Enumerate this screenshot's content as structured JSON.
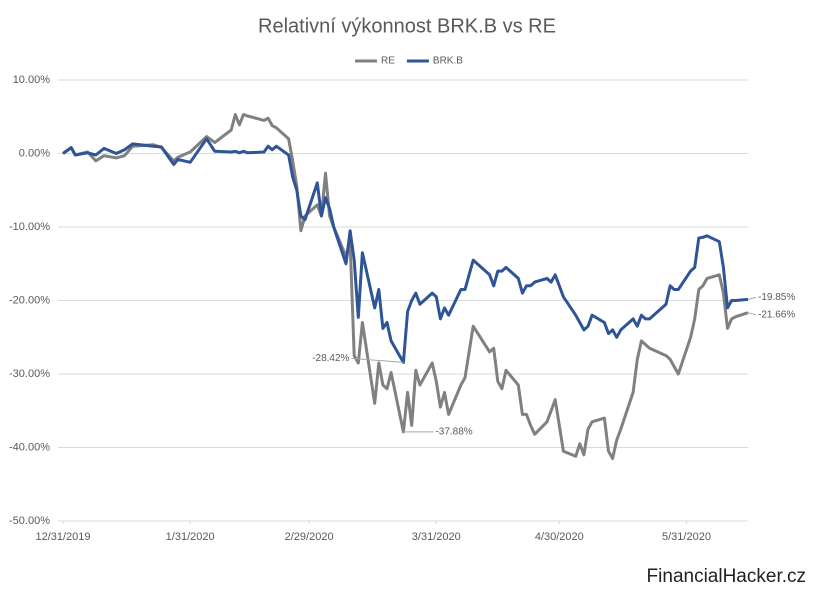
{
  "chart_data": {
    "type": "line",
    "title": "Relativní výkonnost BRK.B vs RE",
    "watermark": "FinancialHacker.cz",
    "x": [
      "2019-12-31",
      "2020-01-02",
      "2020-01-03",
      "2020-01-06",
      "2020-01-08",
      "2020-01-10",
      "2020-01-13",
      "2020-01-15",
      "2020-01-17",
      "2020-01-22",
      "2020-01-24",
      "2020-01-27",
      "2020-01-28",
      "2020-01-31",
      "2020-02-04",
      "2020-02-06",
      "2020-02-10",
      "2020-02-11",
      "2020-02-12",
      "2020-02-13",
      "2020-02-14",
      "2020-02-18",
      "2020-02-19",
      "2020-02-20",
      "2020-02-21",
      "2020-02-24",
      "2020-02-25",
      "2020-02-26",
      "2020-02-27",
      "2020-02-28",
      "2020-03-02",
      "2020-03-03",
      "2020-03-04",
      "2020-03-05",
      "2020-03-06",
      "2020-03-09",
      "2020-03-10",
      "2020-03-11",
      "2020-03-12",
      "2020-03-13",
      "2020-03-16",
      "2020-03-17",
      "2020-03-18",
      "2020-03-19",
      "2020-03-20",
      "2020-03-23",
      "2020-03-24",
      "2020-03-25",
      "2020-03-26",
      "2020-03-27",
      "2020-03-30",
      "2020-03-31",
      "2020-04-01",
      "2020-04-02",
      "2020-04-03",
      "2020-04-06",
      "2020-04-07",
      "2020-04-08",
      "2020-04-09",
      "2020-04-13",
      "2020-04-14",
      "2020-04-15",
      "2020-04-16",
      "2020-04-17",
      "2020-04-20",
      "2020-04-21",
      "2020-04-22",
      "2020-04-23",
      "2020-04-24",
      "2020-04-27",
      "2020-04-28",
      "2020-04-29",
      "2020-04-30",
      "2020-05-01",
      "2020-05-04",
      "2020-05-05",
      "2020-05-06",
      "2020-05-07",
      "2020-05-08",
      "2020-05-11",
      "2020-05-12",
      "2020-05-13",
      "2020-05-14",
      "2020-05-15",
      "2020-05-18",
      "2020-05-19",
      "2020-05-20",
      "2020-05-21",
      "2020-05-22",
      "2020-05-26",
      "2020-05-27",
      "2020-05-28",
      "2020-05-29",
      "2020-06-01",
      "2020-06-02",
      "2020-06-03",
      "2020-06-04",
      "2020-06-05",
      "2020-06-08",
      "2020-06-09",
      "2020-06-10",
      "2020-06-11",
      "2020-06-12",
      "2020-06-15"
    ],
    "series": [
      {
        "name": "RE",
        "color": "#808080",
        "values": [
          0,
          0.8,
          -0.2,
          0.2,
          -1.0,
          -0.3,
          -0.6,
          -0.3,
          1.0,
          1.2,
          0.8,
          -1.0,
          -0.5,
          0.2,
          2.3,
          1.5,
          3.2,
          5.3,
          3.9,
          5.3,
          5.1,
          4.5,
          4.8,
          3.8,
          3.5,
          2.0,
          -1.0,
          -4.5,
          -10.5,
          -8.5,
          -7.0,
          -8.5,
          -2.7,
          -8.5,
          -10.0,
          -14.0,
          -12.0,
          -27.5,
          -28.5,
          -23.0,
          -34.0,
          -28.5,
          -31.5,
          -32.0,
          -29.8,
          -37.88,
          -32.5,
          -37.0,
          -29.5,
          -31.5,
          -28.5,
          -31.0,
          -34.5,
          -32.5,
          -35.5,
          -31.5,
          -30.5,
          -27.0,
          -23.5,
          -27.0,
          -26.5,
          -31.0,
          -32.0,
          -29.5,
          -31.5,
          -35.5,
          -35.5,
          -37.0,
          -38.2,
          -36.5,
          -35.0,
          -33.5,
          -37.0,
          -40.5,
          -41.2,
          -39.5,
          -41.0,
          -37.5,
          -36.5,
          -36.0,
          -40.5,
          -41.5,
          -39.0,
          -37.5,
          -32.5,
          -28.0,
          -25.5,
          -26.0,
          -26.5,
          -27.5,
          -28.0,
          -29.0,
          -30.0,
          -25.0,
          -22.5,
          -18.5,
          -18.0,
          -17.0,
          -16.5,
          -19.0,
          -23.8,
          -22.5,
          -22.2,
          -21.66
        ],
        "value_labels": [
          null,
          null,
          null,
          null,
          null,
          null,
          null,
          null,
          null,
          null,
          null,
          null,
          null,
          null,
          null,
          null,
          null,
          null,
          null,
          null,
          null,
          null,
          null,
          null,
          null,
          null,
          null,
          null,
          null,
          null,
          null,
          null,
          null,
          null,
          null,
          null,
          null,
          null,
          null,
          null,
          null,
          null,
          null,
          null,
          null,
          "-37.88%",
          null,
          null,
          null,
          null,
          null,
          null,
          null,
          null,
          null,
          null,
          null,
          null,
          null,
          null,
          null,
          null,
          null,
          null,
          null,
          null,
          null,
          null,
          null,
          null,
          null,
          null,
          null,
          null,
          null,
          null,
          null,
          null,
          null,
          null,
          null,
          null,
          null,
          null,
          null,
          null,
          null,
          null,
          null,
          null,
          null,
          null,
          null,
          null,
          null,
          null,
          null,
          null,
          null,
          null,
          null,
          null,
          null,
          "-21.66%"
        ]
      },
      {
        "name": "BRK.B",
        "color": "#2f5597",
        "values": [
          0,
          0.8,
          -0.2,
          0.1,
          -0.2,
          0.7,
          0.0,
          0.5,
          1.3,
          1.0,
          0.9,
          -1.5,
          -0.8,
          -1.2,
          2.0,
          0.3,
          0.2,
          0.3,
          0.1,
          0.3,
          0.1,
          0.2,
          1.0,
          0.5,
          1.0,
          -0.2,
          -3.2,
          -5.0,
          -8.5,
          -9.0,
          -4.0,
          -8.5,
          -6.0,
          -7.5,
          -10.0,
          -15.0,
          -10.5,
          -14.5,
          -22.3,
          -13.5,
          -21.0,
          -18.5,
          -23.8,
          -23.0,
          -25.5,
          -28.42,
          -21.5,
          -20.0,
          -19.0,
          -20.5,
          -19.0,
          -19.5,
          -22.5,
          -21.0,
          -22.0,
          -18.5,
          -18.5,
          -16.5,
          -14.5,
          -16.5,
          -18.0,
          -16.0,
          -16.0,
          -15.5,
          -17.0,
          -19.0,
          -18.0,
          -18.0,
          -17.5,
          -17.0,
          -17.5,
          -16.5,
          -18.0,
          -19.5,
          -22.0,
          -23.0,
          -24.0,
          -23.5,
          -22.0,
          -23.0,
          -24.5,
          -24.0,
          -25.0,
          -24.0,
          -22.5,
          -23.5,
          -22.0,
          -22.5,
          -22.5,
          -20.5,
          -18.0,
          -18.5,
          -18.5,
          -16.0,
          -15.5,
          -11.5,
          -11.4,
          -11.2,
          -12.0,
          -15.5,
          -21.0,
          -20.0,
          -20.0,
          -19.85
        ],
        "value_labels": [
          null,
          null,
          null,
          null,
          null,
          null,
          null,
          null,
          null,
          null,
          null,
          null,
          null,
          null,
          null,
          null,
          null,
          null,
          null,
          null,
          null,
          null,
          null,
          null,
          null,
          null,
          null,
          null,
          null,
          null,
          null,
          null,
          null,
          null,
          null,
          null,
          null,
          null,
          null,
          null,
          null,
          null,
          null,
          null,
          null,
          "-28.42%",
          null,
          null,
          null,
          null,
          null,
          null,
          null,
          null,
          null,
          null,
          null,
          null,
          null,
          null,
          null,
          null,
          null,
          null,
          null,
          null,
          null,
          null,
          null,
          null,
          null,
          null,
          null,
          null,
          null,
          null,
          null,
          null,
          null,
          null,
          null,
          null,
          null,
          null,
          null,
          null,
          null,
          null,
          null,
          null,
          null,
          null,
          null,
          null,
          null,
          null,
          null,
          null,
          null,
          null,
          null,
          null,
          null,
          "-19.85%"
        ]
      }
    ],
    "xlim": [
      "2019-12-31",
      "2020-06-15"
    ],
    "xticks": [
      {
        "value": "2019-12-31",
        "label": "12/31/2019"
      },
      {
        "value": "2020-01-31",
        "label": "1/31/2020"
      },
      {
        "value": "2020-02-29",
        "label": "2/29/2020"
      },
      {
        "value": "2020-03-31",
        "label": "3/31/2020"
      },
      {
        "value": "2020-04-30",
        "label": "4/30/2020"
      },
      {
        "value": "2020-05-31",
        "label": "5/31/2020"
      }
    ],
    "ylim": [
      -50,
      10
    ],
    "yticks": [
      {
        "value": 10,
        "label": "10.00%"
      },
      {
        "value": 0,
        "label": "0.00%"
      },
      {
        "value": -10,
        "label": "-10.00%"
      },
      {
        "value": -20,
        "label": "-20.00%"
      },
      {
        "value": -30,
        "label": "-30.00%"
      },
      {
        "value": -40,
        "label": "-40.00%"
      },
      {
        "value": -50,
        "label": "-50.00%"
      }
    ],
    "grid": true,
    "legend": "top"
  }
}
